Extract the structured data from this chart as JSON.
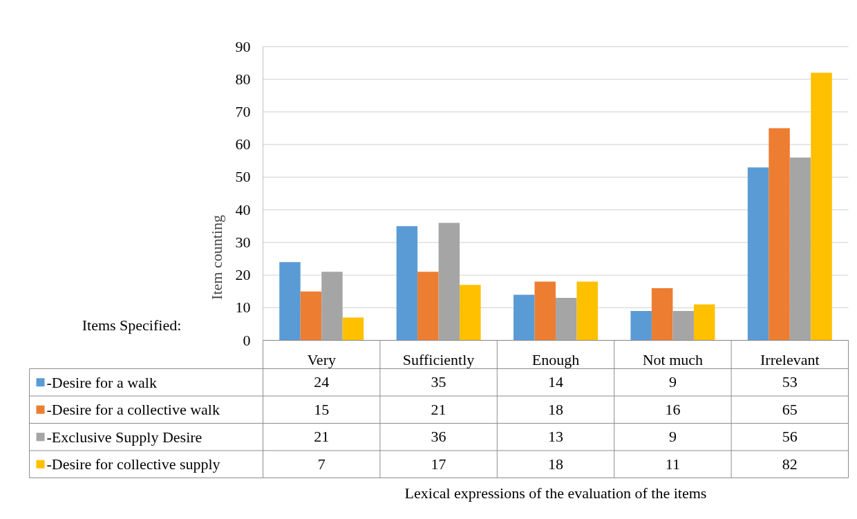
{
  "chart_data": {
    "type": "bar",
    "ylabel": "Item counting",
    "categories": [
      "Very",
      "Sufficiently",
      "Enough",
      "Not much",
      "Irrelevant"
    ],
    "series": [
      {
        "name": "-Desire for a walk",
        "color": "#5b9bd5",
        "values": [
          24,
          35,
          14,
          9,
          53
        ]
      },
      {
        "name": "-Desire for a collective walk",
        "color": "#ed7d31",
        "values": [
          15,
          21,
          18,
          16,
          65
        ]
      },
      {
        "name": "-Exclusive Supply Desire",
        "color": "#a5a5a5",
        "values": [
          21,
          36,
          13,
          9,
          56
        ]
      },
      {
        "name": "-Desire for collective supply",
        "color": "#ffc000",
        "values": [
          7,
          17,
          18,
          11,
          82
        ]
      }
    ],
    "ylim": [
      0,
      90
    ],
    "yticks": [
      0,
      10,
      20,
      30,
      40,
      50,
      60,
      70,
      80,
      90
    ],
    "grid": "y",
    "legend": "bottom",
    "data_labels": true,
    "annotations": [
      "Items Specified:",
      "Lexical expressions of the evaluation of the items"
    ]
  }
}
